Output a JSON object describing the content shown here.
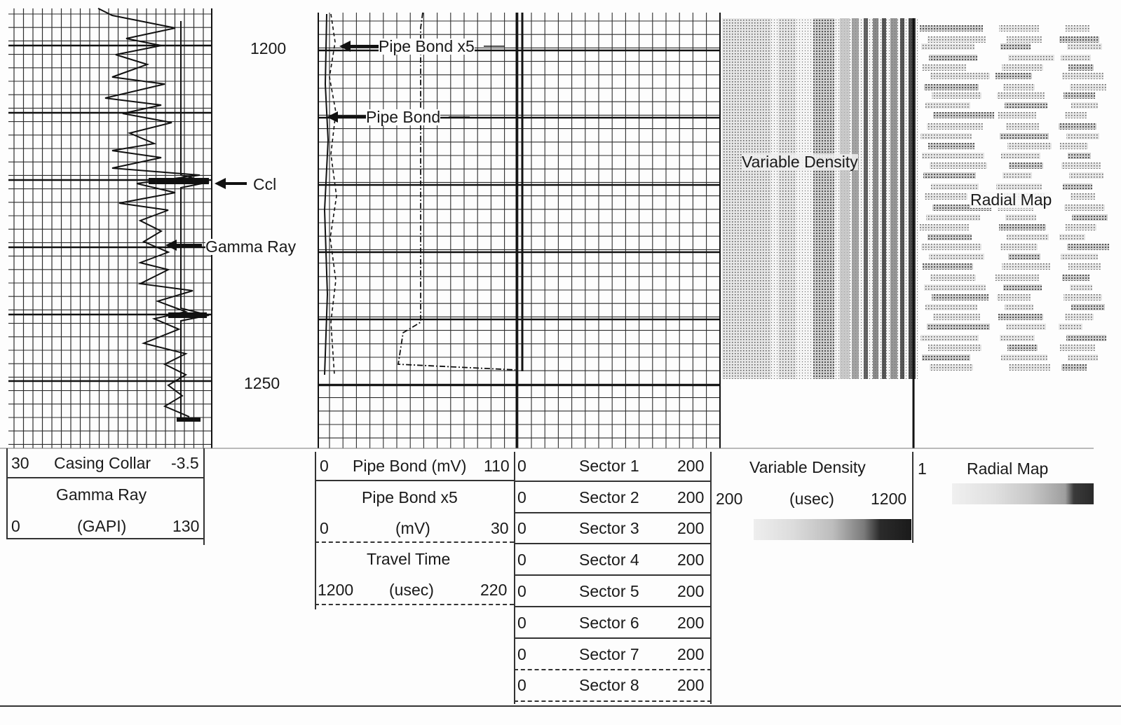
{
  "depths": {
    "upper": "1200",
    "lower": "1250"
  },
  "annotations": {
    "pipe_bond_x5": "Pipe Bond x5",
    "pipe_bond": "Pipe Bond",
    "ccl": "Ccl",
    "gamma_ray": "Gamma Ray",
    "variable_density": "Variable Density",
    "radial_map": "Radial Map"
  },
  "legend_track1": {
    "casing_collar": {
      "min": "30",
      "name": "Casing Collar",
      "max": "-3.5"
    },
    "gamma_ray": {
      "name": "Gamma Ray",
      "min": "0",
      "unit": "(GAPI)",
      "max": "130"
    }
  },
  "legend_track2": {
    "pipe_bond": {
      "min": "0",
      "name": "Pipe Bond (mV)",
      "max": "110"
    },
    "pipe_bond_x5": {
      "name": "Pipe Bond x5",
      "min": "0",
      "unit": "(mV)",
      "max": "30"
    },
    "travel_time": {
      "name": "Travel Time",
      "min": "1200",
      "unit": "(usec)",
      "max": "220"
    }
  },
  "legend_sectors": [
    {
      "min": "0",
      "name": "Sector 1",
      "max": "200"
    },
    {
      "min": "0",
      "name": "Sector 2",
      "max": "200"
    },
    {
      "min": "0",
      "name": "Sector 3",
      "max": "200"
    },
    {
      "min": "0",
      "name": "Sector 4",
      "max": "200"
    },
    {
      "min": "0",
      "name": "Sector 5",
      "max": "200"
    },
    {
      "min": "0",
      "name": "Sector 6",
      "max": "200"
    },
    {
      "min": "0",
      "name": "Sector 7",
      "max": "200"
    },
    {
      "min": "0",
      "name": "Sector 8",
      "max": "200"
    }
  ],
  "legend_vdl": {
    "name": "Variable Density",
    "min": "200",
    "unit": "(usec)",
    "max": "1200"
  },
  "legend_radial": {
    "min": "1",
    "name": "Radial Map"
  }
}
